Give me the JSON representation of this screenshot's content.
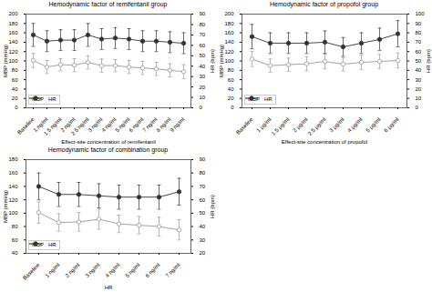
{
  "chart_data": [
    {
      "type": "line",
      "title": "Hemodynamic factor of remifentanil group",
      "x_label": "Effect-site concentration of remifentanil",
      "y_label": "MBP (mmHg)",
      "y2_label": "HR (bpm)",
      "categories": [
        "Baseline",
        "1 ng/ml",
        "1.5 ng/ml",
        "2 ng/ml",
        "2.5 ng/ml",
        "3 ng/ml",
        "4 ng/ml",
        "5 ng/ml",
        "6 ng/ml",
        "7 ng/ml",
        "8 ng/ml",
        "9 ng/ml"
      ],
      "series": [
        {
          "name": "MBP",
          "color": "#999999",
          "marker": "open_circle",
          "values": [
            101,
            87,
            92,
            91,
            97,
            90,
            90,
            87,
            85,
            83,
            80,
            77
          ],
          "errors": [
            15,
            14,
            13,
            14,
            14,
            14,
            13,
            14,
            14,
            14,
            14,
            15
          ]
        },
        {
          "name": "HR",
          "color": "#333333",
          "marker": "circle",
          "axis": "y2",
          "values": [
            70,
            64,
            65,
            65,
            70,
            66,
            67,
            66,
            64,
            64,
            63,
            62
          ],
          "errors": [
            11,
            10,
            10,
            10,
            11,
            10,
            10,
            10,
            10,
            10,
            10,
            10
          ]
        }
      ],
      "ylim": [
        0,
        200
      ],
      "yticks": [
        0,
        20,
        40,
        60,
        80,
        100,
        120,
        140,
        160,
        180,
        200
      ],
      "y2lim": [
        0,
        90
      ],
      "y2ticks": [
        0,
        10,
        20,
        30,
        40,
        50,
        60,
        70,
        80,
        90
      ],
      "legend": "lower left"
    },
    {
      "type": "line",
      "title": "Hemodynamic factor of propofol group",
      "x_label": "Effect-site concentration of propofol",
      "y_label": "MBP (mmHg)",
      "y2_label": "HR (bpm)",
      "categories": [
        "Baseline",
        "1 μg/ml",
        "1.5 μg/ml",
        "2 μg/ml",
        "2.5 μg/ml",
        "3 μg/ml",
        "4 μg/ml",
        "5 μg/ml",
        "6 μg/ml"
      ],
      "series": [
        {
          "name": "MBP",
          "color": "#999999",
          "marker": "open_circle",
          "values": [
            104,
            90,
            92,
            94,
            99,
            93,
            97,
            99,
            101
          ],
          "errors": [
            16,
            14,
            14,
            15,
            16,
            14,
            15,
            15,
            16
          ]
        },
        {
          "name": "HR",
          "color": "#333333",
          "marker": "circle",
          "axis": "y2",
          "values": [
            76,
            69,
            69,
            69,
            70,
            65,
            69,
            73,
            79
          ],
          "errors": [
            13,
            11,
            11,
            11,
            12,
            10,
            11,
            12,
            14
          ]
        }
      ],
      "ylim": [
        0,
        200
      ],
      "yticks": [
        0,
        20,
        40,
        60,
        80,
        100,
        120,
        140,
        160,
        180,
        200
      ],
      "y2lim": [
        0,
        100
      ],
      "y2ticks": [
        0,
        10,
        20,
        30,
        40,
        50,
        60,
        70,
        80,
        90,
        100
      ],
      "legend": "lower left"
    },
    {
      "type": "line",
      "title": "Hemodynamic factor of combination group",
      "x_label": "HR",
      "y_label": "MBP (mmHg)",
      "y2_label": "HR (bpm)",
      "categories": [
        "Baseline",
        "1 ng/ml",
        "2 ng/ml",
        "3 ng/ml",
        "4 ng/ml",
        "5 ng/ml",
        "6 ng/ml",
        "7 ng/ml"
      ],
      "series": [
        {
          "name": "MBP",
          "color": "#999999",
          "marker": "open_circle",
          "values": [
            101,
            86,
            87,
            91,
            84,
            82,
            80,
            75
          ],
          "errors": [
            16,
            13,
            14,
            15,
            13,
            13,
            14,
            15
          ]
        },
        {
          "name": "HR",
          "color": "#333333",
          "marker": "circle",
          "axis": "y2",
          "values": [
            70,
            64,
            64,
            63,
            62,
            62,
            62,
            66
          ],
          "errors": [
            10,
            9,
            9,
            9,
            9,
            9,
            9,
            10
          ]
        }
      ],
      "ylim": [
        40,
        180
      ],
      "yticks": [
        40,
        60,
        80,
        100,
        120,
        140,
        160,
        180
      ],
      "y2lim": [
        20,
        90
      ],
      "y2ticks": [
        20,
        30,
        40,
        50,
        60,
        70,
        80,
        90
      ],
      "legend": "lower left"
    }
  ]
}
